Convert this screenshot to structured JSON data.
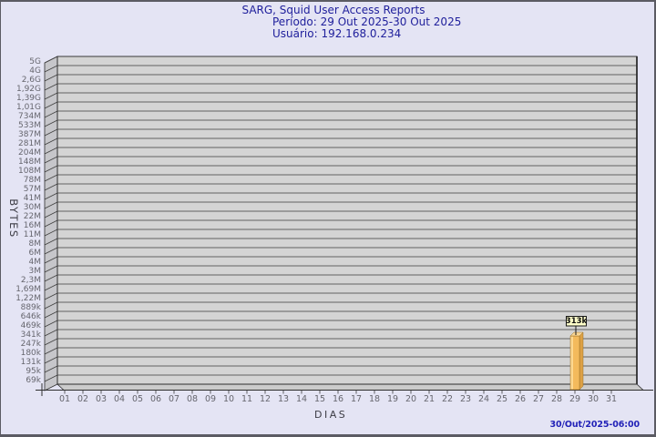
{
  "header": {
    "title": "SARG, Squid User Access Reports",
    "period": "Período: 29 Out 2025-30 Out 2025",
    "user": "Usuário: 192.168.0.234"
  },
  "footer": {
    "timestamp": "30/Out/2025-06:00"
  },
  "chart_data": {
    "type": "bar",
    "title": "SARG, Squid User Access Reports",
    "subtitle": "Período: 29 Out 2025-30 Out 2025 / Usuário: 192.168.0.234",
    "xlabel": "DIAS",
    "ylabel": "BYTES",
    "y_scale": "log",
    "grid": true,
    "legend_position": "none",
    "categories": [
      "01",
      "02",
      "03",
      "04",
      "05",
      "06",
      "07",
      "08",
      "09",
      "10",
      "11",
      "12",
      "13",
      "14",
      "15",
      "16",
      "17",
      "18",
      "19",
      "20",
      "21",
      "22",
      "23",
      "24",
      "25",
      "26",
      "27",
      "28",
      "29",
      "30",
      "31"
    ],
    "values": [
      0,
      0,
      0,
      0,
      0,
      0,
      0,
      0,
      0,
      0,
      0,
      0,
      0,
      0,
      0,
      0,
      0,
      0,
      0,
      0,
      0,
      0,
      0,
      0,
      0,
      0,
      0,
      0,
      313000,
      0,
      0
    ],
    "bar_label": {
      "day": "29",
      "text": "313k"
    },
    "y_ticks": [
      "5G",
      "4G",
      "2,6G",
      "1,92G",
      "1,39G",
      "1,01G",
      "734M",
      "533M",
      "387M",
      "281M",
      "204M",
      "148M",
      "108M",
      "78M",
      "57M",
      "41M",
      "30M",
      "22M",
      "16M",
      "11M",
      "8M",
      "6M",
      "4M",
      "3M",
      "2,3M",
      "1,69M",
      "1,22M",
      "889k",
      "646k",
      "469k",
      "341k",
      "247k",
      "180k",
      "131k",
      "95k",
      "69k"
    ],
    "ylim_labels": [
      "69k",
      "5G"
    ]
  },
  "colors": {
    "background": "#e4e4f4",
    "border": "#5b5b63",
    "title_text": "#20209c",
    "timestamp_text": "#2222b8",
    "tick_text": "#66666e",
    "axis_text": "#3c3c44",
    "grid_face": "#d4d4d4",
    "wall_face": "#c6c6ca",
    "floor_face": "#cbcbcb",
    "grid_line": "#3c3c3c",
    "outline": "#2e2e2e",
    "bar_front": "#f3ba5c",
    "bar_highlight": "#fcd892",
    "bar_side": "#dda144",
    "bar_top": "#f9d694",
    "bar_edge": "#9a7128",
    "callout_bg": "#ffffc9",
    "callout_border": "#1a1a1a",
    "callout_text": "#111111"
  }
}
